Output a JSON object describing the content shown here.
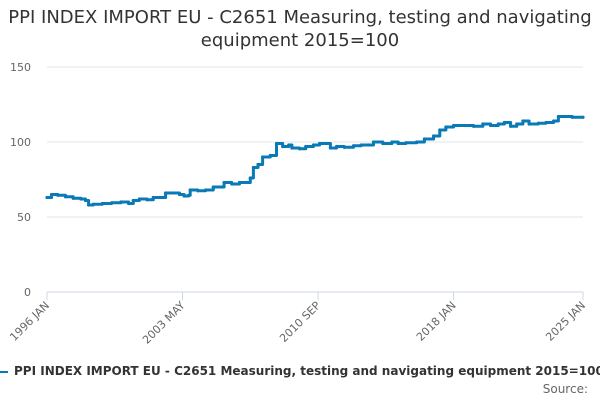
{
  "chart_data": {
    "type": "line",
    "title": "PPI INDEX IMPORT EU - C2651 Measuring, testing and navigating equipment 2015=100",
    "xlabel": "",
    "ylabel": "",
    "ylim": [
      0,
      150
    ],
    "yticks": [
      0,
      50,
      100,
      150
    ],
    "xlim": [
      "1996-01",
      "2025-01"
    ],
    "xticks": [
      {
        "label": "1996 JAN",
        "date": "1996-01"
      },
      {
        "label": "2003 MAY",
        "date": "2003-05"
      },
      {
        "label": "2010 SEP",
        "date": "2010-09"
      },
      {
        "label": "2018 JAN",
        "date": "2018-01"
      },
      {
        "label": "2025 JAN",
        "date": "2025-01"
      }
    ],
    "grid": true,
    "legend_position": "bottom-left",
    "series": [
      {
        "name": "PPI INDEX IMPORT EU - C2651 Measuring, testing and navigating equipment 2015=100",
        "color": "#0a7ab7",
        "points": [
          [
            "1996-01",
            63
          ],
          [
            "1996-04",
            65
          ],
          [
            "1996-08",
            64.5
          ],
          [
            "1997-01",
            63.5
          ],
          [
            "1997-06",
            62.5
          ],
          [
            "1997-11",
            62
          ],
          [
            "1998-02",
            61
          ],
          [
            "1998-04",
            58
          ],
          [
            "1998-07",
            58.5
          ],
          [
            "1999-01",
            59
          ],
          [
            "1999-07",
            59.5
          ],
          [
            "2000-01",
            60
          ],
          [
            "2000-06",
            59
          ],
          [
            "2000-09",
            61
          ],
          [
            "2001-01",
            62
          ],
          [
            "2001-06",
            61.5
          ],
          [
            "2001-10",
            63
          ],
          [
            "2002-02",
            63
          ],
          [
            "2002-06",
            66
          ],
          [
            "2002-10",
            66
          ],
          [
            "2003-03",
            65
          ],
          [
            "2003-06",
            64
          ],
          [
            "2003-09",
            64.5
          ],
          [
            "2003-10",
            68
          ],
          [
            "2004-03",
            67.5
          ],
          [
            "2004-08",
            68
          ],
          [
            "2005-01",
            70
          ],
          [
            "2005-07",
            70
          ],
          [
            "2005-08",
            73
          ],
          [
            "2006-01",
            72
          ],
          [
            "2006-06",
            73
          ],
          [
            "2006-11",
            73
          ],
          [
            "2007-01",
            76
          ],
          [
            "2007-03",
            83
          ],
          [
            "2007-06",
            85
          ],
          [
            "2007-09",
            90
          ],
          [
            "2008-02",
            91
          ],
          [
            "2008-06",
            99
          ],
          [
            "2008-10",
            97
          ],
          [
            "2009-02",
            98
          ],
          [
            "2009-04",
            96
          ],
          [
            "2009-09",
            95.5
          ],
          [
            "2010-01",
            97
          ],
          [
            "2010-06",
            98
          ],
          [
            "2010-10",
            99
          ],
          [
            "2011-03",
            99
          ],
          [
            "2011-05",
            96
          ],
          [
            "2011-09",
            97
          ],
          [
            "2012-02",
            96.5
          ],
          [
            "2012-08",
            97.5
          ],
          [
            "2013-01",
            98
          ],
          [
            "2013-06",
            98
          ],
          [
            "2013-09",
            100
          ],
          [
            "2014-03",
            99
          ],
          [
            "2014-09",
            100
          ],
          [
            "2015-01",
            99
          ],
          [
            "2015-06",
            99.5
          ],
          [
            "2016-01",
            100
          ],
          [
            "2016-06",
            102
          ],
          [
            "2016-12",
            104
          ],
          [
            "2017-04",
            108
          ],
          [
            "2017-08",
            110
          ],
          [
            "2018-01",
            111
          ],
          [
            "2018-08",
            111
          ],
          [
            "2019-02",
            110.5
          ],
          [
            "2019-08",
            112
          ],
          [
            "2020-01",
            111
          ],
          [
            "2020-06",
            112
          ],
          [
            "2020-10",
            113
          ],
          [
            "2021-02",
            110.5
          ],
          [
            "2021-06",
            112
          ],
          [
            "2021-10",
            114
          ],
          [
            "2022-02",
            112
          ],
          [
            "2022-08",
            112.5
          ],
          [
            "2023-01",
            113
          ],
          [
            "2023-06",
            114
          ],
          [
            "2023-09",
            117
          ],
          [
            "2024-01",
            117
          ],
          [
            "2024-06",
            116.5
          ],
          [
            "2025-01",
            116.5
          ]
        ]
      }
    ]
  },
  "source_label": "Source:"
}
